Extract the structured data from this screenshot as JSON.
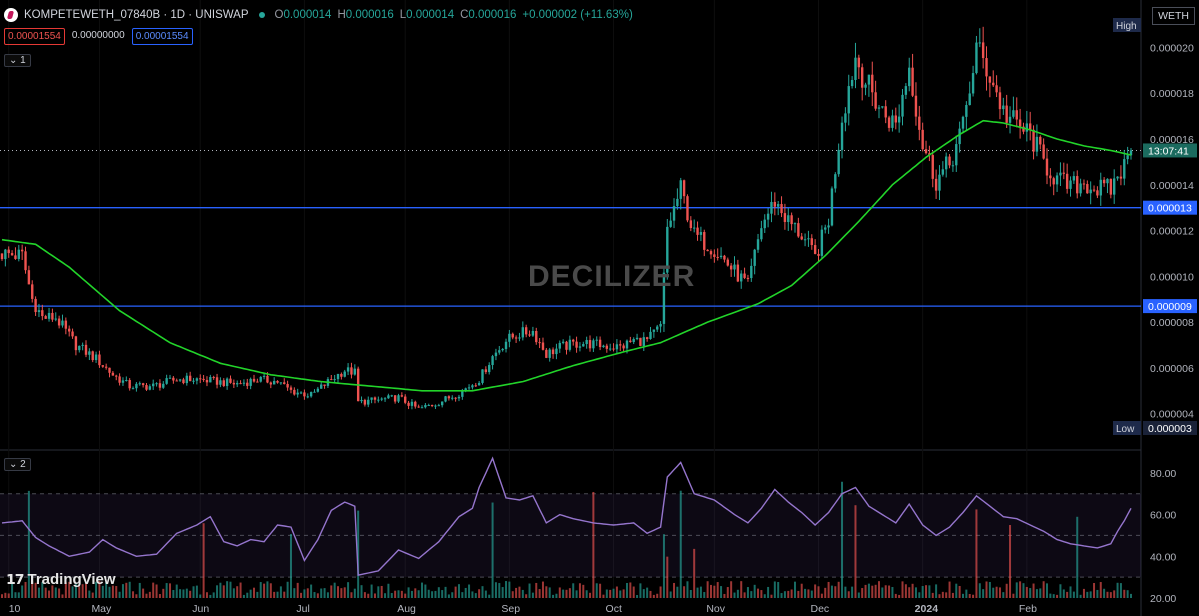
{
  "header": {
    "symbol": "KOMPETEWETH_07840B · 1D · UNISWAP",
    "o_label": "O",
    "o": "0.000014",
    "h_label": "H",
    "h": "0.000016",
    "l_label": "L",
    "l": "0.000014",
    "c_label": "C",
    "c": "0.000016",
    "change": "+0.000002 (+11.63%)"
  },
  "quote_boxes": {
    "sell": "0.00001554",
    "spread": "0.00000000",
    "buy": "0.00001554"
  },
  "pane_tags": {
    "price": "1",
    "rsi": "2"
  },
  "currency": "WETH",
  "watermark": "DECILIZER",
  "brand": "TradingView",
  "colors": {
    "up": "#26a69a",
    "down": "#ef5350",
    "ma": "#22d42a",
    "rsi": "#9575cd",
    "hline": "#2962ff",
    "bg": "#000000"
  },
  "chart_data": [
    {
      "type": "candlestick",
      "title": "",
      "ylim": [
        2.5e-06,
        2.12e-05
      ],
      "y_ticks": [
        "0.000020",
        "0.000018",
        "0.000016",
        "0.000014",
        "0.000012",
        "0.000010",
        "0.000008",
        "0.000006",
        "0.000004"
      ],
      "x_tick_labels": [
        "10",
        "May",
        "Jun",
        "Jul",
        "Aug",
        "Sep",
        "Oct",
        "Nov",
        "Dec",
        "2024",
        "Feb"
      ],
      "price_labels": {
        "high": {
          "tag": "High",
          "value": "0.0000207"
        },
        "low": {
          "tag": "Low",
          "value": "0.000003"
        },
        "countdown": "13:07:41",
        "hline_upper": "0.000013",
        "hline_lower": "0.000009"
      },
      "horizontal_lines": [
        1.3e-05,
        8.7e-06
      ],
      "last_price": 1.55e-05,
      "close_anchors": [
        [
          0,
          1.1e-05
        ],
        [
          6,
          1.09e-05
        ],
        [
          9,
          9e-06
        ],
        [
          12,
          8.2e-06
        ],
        [
          16,
          8.2e-06
        ],
        [
          22,
          7e-06
        ],
        [
          28,
          6.4e-06
        ],
        [
          33,
          5.7e-06
        ],
        [
          38,
          5.2e-06
        ],
        [
          45,
          5.2e-06
        ],
        [
          52,
          5.5e-06
        ],
        [
          58,
          5.5e-06
        ],
        [
          64,
          5.4e-06
        ],
        [
          70,
          5.3e-06
        ],
        [
          76,
          5.5e-06
        ],
        [
          82,
          5.4e-06
        ],
        [
          86,
          5e-06
        ],
        [
          92,
          4.8e-06
        ],
        [
          98,
          5.5e-06
        ],
        [
          102,
          5.9e-06
        ],
        [
          105,
          5.8e-06
        ],
        [
          106,
          4.5e-06
        ],
        [
          112,
          4.6e-06
        ],
        [
          118,
          4.7e-06
        ],
        [
          124,
          4.2e-06
        ],
        [
          130,
          4.5e-06
        ],
        [
          136,
          4.9e-06
        ],
        [
          142,
          5.5e-06
        ],
        [
          146,
          6.5e-06
        ],
        [
          150,
          7.2e-06
        ],
        [
          154,
          7.5e-06
        ],
        [
          158,
          7.6e-06
        ],
        [
          162,
          6.6e-06
        ],
        [
          166,
          6.9e-06
        ],
        [
          172,
          7.1e-06
        ],
        [
          178,
          7e-06
        ],
        [
          184,
          6.9e-06
        ],
        [
          188,
          7.2e-06
        ],
        [
          192,
          7.2e-06
        ],
        [
          196,
          7.8e-06
        ],
        [
          198,
          1.21e-05
        ],
        [
          202,
          1.38e-05
        ],
        [
          206,
          1.18e-05
        ],
        [
          212,
          1.12e-05
        ],
        [
          218,
          1.02e-05
        ],
        [
          222,
          9.6e-06
        ],
        [
          226,
          1.22e-05
        ],
        [
          230,
          1.33e-05
        ],
        [
          234,
          1.24e-05
        ],
        [
          238,
          1.18e-05
        ],
        [
          242,
          1.08e-05
        ],
        [
          246,
          1.25e-05
        ],
        [
          250,
          1.7e-05
        ],
        [
          254,
          1.96e-05
        ],
        [
          258,
          1.82e-05
        ],
        [
          262,
          1.72e-05
        ],
        [
          266,
          1.66e-05
        ],
        [
          270,
          1.92e-05
        ],
        [
          274,
          1.58e-05
        ],
        [
          278,
          1.42e-05
        ],
        [
          282,
          1.49e-05
        ],
        [
          286,
          1.65e-05
        ],
        [
          290,
          2e-05
        ],
        [
          294,
          1.88e-05
        ],
        [
          298,
          1.72e-05
        ],
        [
          302,
          1.66e-05
        ],
        [
          306,
          1.62e-05
        ],
        [
          310,
          1.5e-05
        ],
        [
          314,
          1.42e-05
        ],
        [
          318,
          1.39e-05
        ],
        [
          322,
          1.41e-05
        ],
        [
          326,
          1.38e-05
        ],
        [
          330,
          1.38e-05
        ],
        [
          332,
          1.44e-05
        ],
        [
          334,
          1.48e-05
        ],
        [
          336,
          1.55e-05
        ]
      ],
      "ma_anchors": [
        [
          0,
          1.16e-05
        ],
        [
          10,
          1.14e-05
        ],
        [
          20,
          1.04e-05
        ],
        [
          35,
          8.5e-06
        ],
        [
          50,
          7.1e-06
        ],
        [
          65,
          6.2e-06
        ],
        [
          80,
          5.7e-06
        ],
        [
          95,
          5.4e-06
        ],
        [
          110,
          5.2e-06
        ],
        [
          125,
          5e-06
        ],
        [
          140,
          5e-06
        ],
        [
          155,
          5.4e-06
        ],
        [
          170,
          6.1e-06
        ],
        [
          185,
          6.7e-06
        ],
        [
          196,
          7.1e-06
        ],
        [
          210,
          8e-06
        ],
        [
          225,
          8.8e-06
        ],
        [
          235,
          9.6e-06
        ],
        [
          245,
          1.09e-05
        ],
        [
          255,
          1.24e-05
        ],
        [
          265,
          1.4e-05
        ],
        [
          275,
          1.52e-05
        ],
        [
          285,
          1.62e-05
        ],
        [
          292,
          1.68e-05
        ],
        [
          298,
          1.67e-05
        ],
        [
          306,
          1.64e-05
        ],
        [
          314,
          1.6e-05
        ],
        [
          322,
          1.57e-05
        ],
        [
          330,
          1.55e-05
        ],
        [
          336,
          1.53e-05
        ]
      ]
    },
    {
      "type": "line",
      "title": "",
      "ylim": [
        20,
        90
      ],
      "y_ticks": [
        "80.00",
        "60.00",
        "40.00",
        "20.00"
      ],
      "bands": [
        70,
        30
      ],
      "rsi_anchors": [
        [
          0,
          56
        ],
        [
          6,
          57
        ],
        [
          10,
          49
        ],
        [
          14,
          45
        ],
        [
          20,
          40
        ],
        [
          26,
          42
        ],
        [
          30,
          48
        ],
        [
          34,
          44
        ],
        [
          40,
          40
        ],
        [
          46,
          41
        ],
        [
          52,
          51
        ],
        [
          58,
          55
        ],
        [
          62,
          59
        ],
        [
          66,
          47
        ],
        [
          70,
          45
        ],
        [
          74,
          48
        ],
        [
          78,
          47
        ],
        [
          82,
          55
        ],
        [
          86,
          54
        ],
        [
          90,
          38
        ],
        [
          94,
          48
        ],
        [
          98,
          62
        ],
        [
          102,
          66
        ],
        [
          105,
          64
        ],
        [
          106,
          31
        ],
        [
          112,
          33
        ],
        [
          118,
          43
        ],
        [
          124,
          39
        ],
        [
          130,
          47
        ],
        [
          136,
          59
        ],
        [
          140,
          63
        ],
        [
          142,
          73
        ],
        [
          146,
          87
        ],
        [
          150,
          68
        ],
        [
          154,
          67
        ],
        [
          158,
          69
        ],
        [
          162,
          56
        ],
        [
          166,
          60
        ],
        [
          170,
          58
        ],
        [
          176,
          56
        ],
        [
          182,
          55
        ],
        [
          188,
          56
        ],
        [
          192,
          51
        ],
        [
          196,
          54
        ],
        [
          198,
          78
        ],
        [
          202,
          85
        ],
        [
          206,
          70
        ],
        [
          212,
          67
        ],
        [
          218,
          60
        ],
        [
          222,
          56
        ],
        [
          226,
          63
        ],
        [
          230,
          72
        ],
        [
          234,
          66
        ],
        [
          238,
          61
        ],
        [
          242,
          55
        ],
        [
          246,
          61
        ],
        [
          250,
          70
        ],
        [
          254,
          73
        ],
        [
          258,
          64
        ],
        [
          262,
          60
        ],
        [
          266,
          56
        ],
        [
          270,
          65
        ],
        [
          274,
          55
        ],
        [
          278,
          50
        ],
        [
          282,
          54
        ],
        [
          286,
          61
        ],
        [
          290,
          69
        ],
        [
          294,
          64
        ],
        [
          298,
          59
        ],
        [
          302,
          58
        ],
        [
          306,
          55
        ],
        [
          310,
          52
        ],
        [
          314,
          48
        ],
        [
          318,
          46
        ],
        [
          322,
          45
        ],
        [
          326,
          44
        ],
        [
          330,
          46
        ],
        [
          332,
          52
        ],
        [
          334,
          57
        ],
        [
          336,
          63
        ]
      ]
    }
  ]
}
